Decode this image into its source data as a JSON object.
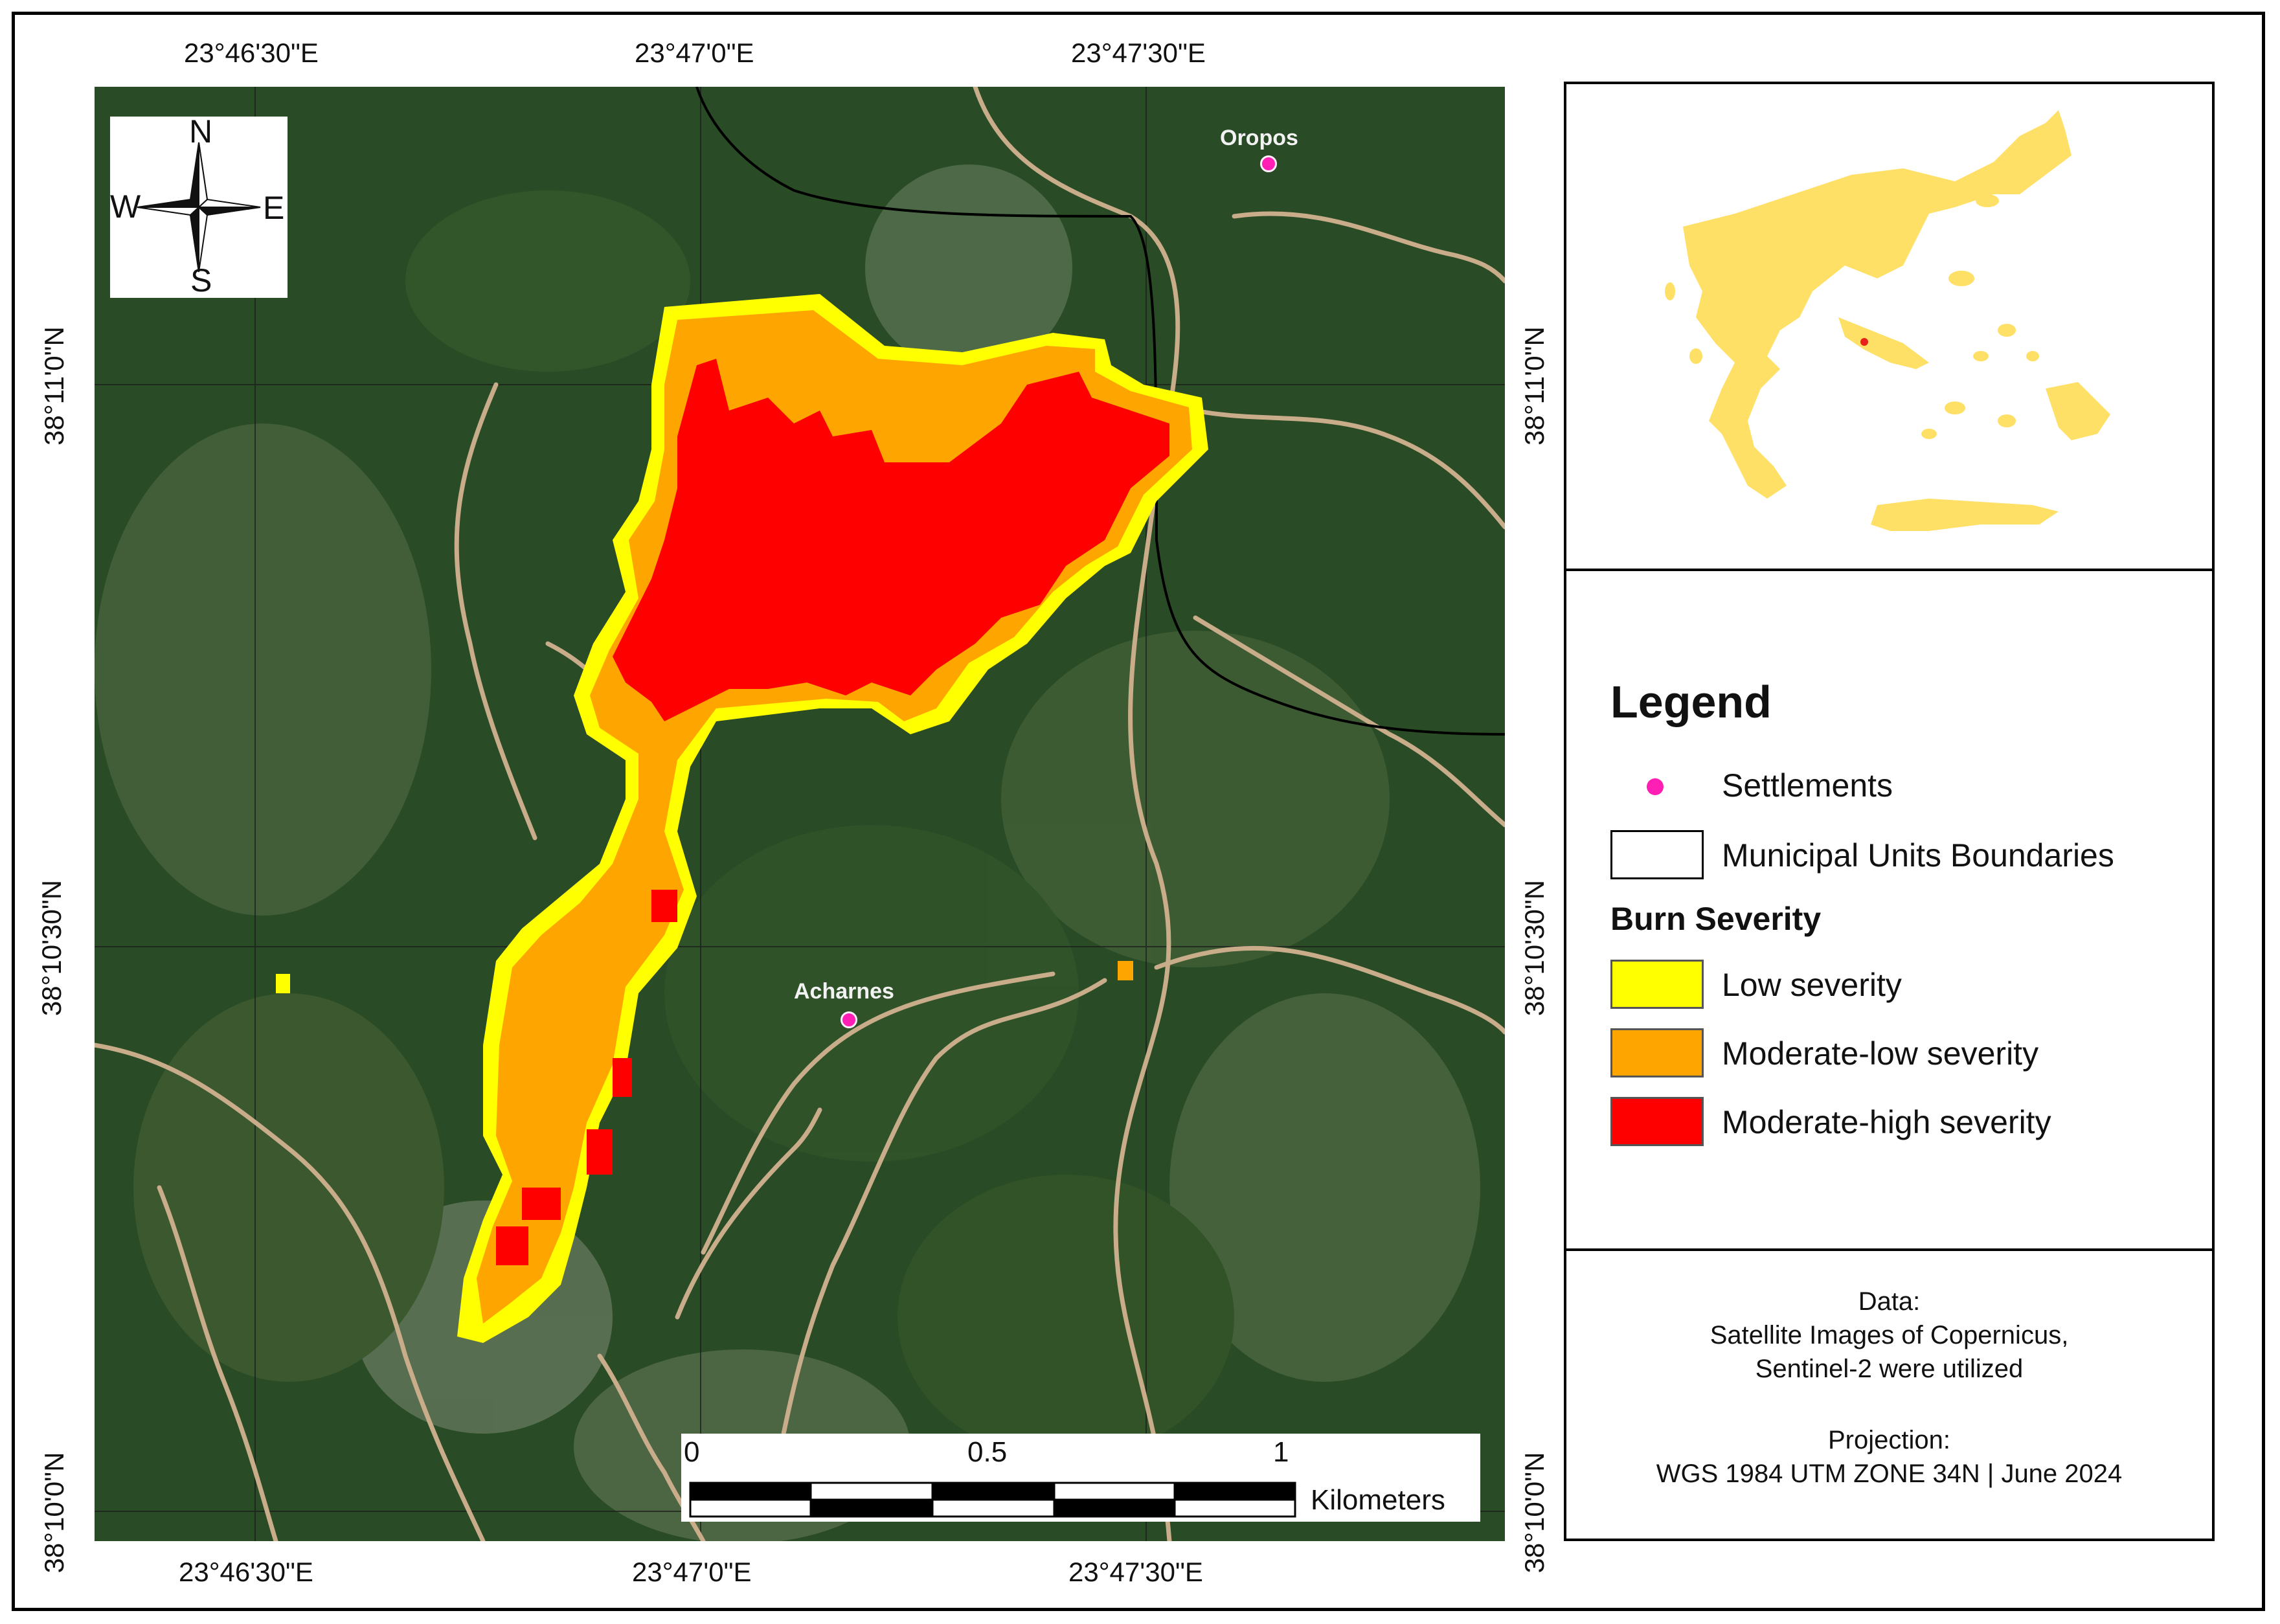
{
  "coordinates": {
    "top": [
      "23°46'30\"E",
      "23°47'0\"E",
      "23°47'30\"E"
    ],
    "bottom": [
      "23°46'30\"E",
      "23°47'0\"E",
      "23°47'30\"E"
    ],
    "left": [
      "38°11'0\"N",
      "38°10'30\"N",
      "38°10'0\"N"
    ],
    "right": [
      "38°11'0\"N",
      "38°10'30\"N",
      "38°10'0\"N"
    ]
  },
  "compass": {
    "n": "N",
    "s": "S",
    "e": "E",
    "w": "W"
  },
  "settlements": [
    {
      "name": "Oropos"
    },
    {
      "name": "Acharnes"
    }
  ],
  "scale_bar": {
    "ticks": [
      "0",
      "0.5",
      "1"
    ],
    "unit": "Kilometers"
  },
  "legend": {
    "title": "Legend",
    "settlements_label": "Settlements",
    "boundaries_label": "Municipal Units Boundaries",
    "burn_title": "Burn Severity",
    "classes": [
      {
        "label": "Low severity",
        "color": "#ffff00"
      },
      {
        "label": "Moderate-low severity",
        "color": "#ffa500"
      },
      {
        "label": "Moderate-high severity",
        "color": "#ff0000"
      }
    ],
    "settlement_color": "#ff1fb4"
  },
  "data_panel": {
    "line1": "Data:",
    "line2": "Satellite Images of Copernicus,",
    "line3": "Sentinel-2 were utilized",
    "line4": "Projection:",
    "line5": "WGS 1984 UTM ZONE 34N | June 2024"
  },
  "inset": {
    "fill_color": "#ffe066",
    "marker_color": "#e8221b"
  }
}
